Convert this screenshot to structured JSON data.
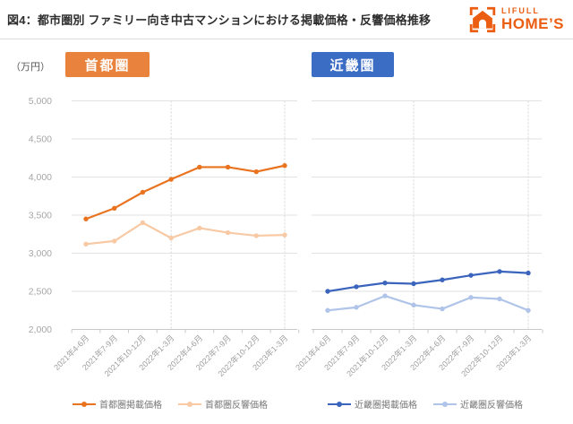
{
  "header": {
    "title": "図4：都市圏別 ファミリー向き中古マンションにおける掲載価格・反響価格推移",
    "logo": {
      "brand_top": "LIFULL",
      "brand_bottom": "HOME’S",
      "color": "#EB5E12"
    }
  },
  "axis": {
    "unit": "（万円）"
  },
  "theme": {
    "grid_color": "#E2E2E2",
    "axis_color": "#C8C8C8",
    "dashed_guide_color": "#D5D5D5",
    "ytick_label_color": "#A6A6A6",
    "xtick_label_color": "#9E9E9E",
    "legend_text_color": "#777777",
    "title_color": "#2D2D2D"
  },
  "chart_data": [
    {
      "type": "line",
      "panel_label": "首都圏",
      "panel_color": "#E8823C",
      "categories": [
        "2021年4-6月",
        "2021年7-9月",
        "2021年10-12月",
        "2022年1-3月",
        "2022年4-6月",
        "2022年7-9月",
        "2022年10-12月",
        "2023年1-3月"
      ],
      "ylabel": "（万円）",
      "ylim": [
        2000,
        5000
      ],
      "ytick_step": 500,
      "grid": true,
      "legend_position": "bottom",
      "series": [
        {
          "name": "首都圏掲載価格",
          "color": "#E9731F",
          "values": [
            3450,
            3590,
            3800,
            3970,
            4130,
            4130,
            4070,
            4150
          ]
        },
        {
          "name": "首都圏反響価格",
          "color": "#F7C9A4",
          "values": [
            3120,
            3160,
            3400,
            3200,
            3330,
            3270,
            3230,
            3240
          ]
        }
      ]
    },
    {
      "type": "line",
      "panel_label": "近畿圏",
      "panel_color": "#3C6DC5",
      "categories": [
        "2021年4-6月",
        "2021年7-9月",
        "2021年10-12月",
        "2022年1-3月",
        "2022年4-6月",
        "2022年7-9月",
        "2022年10-12月",
        "2023年1-3月"
      ],
      "ylabel": "（万円）",
      "ylim": [
        2000,
        5000
      ],
      "ytick_step": 500,
      "grid": true,
      "legend_position": "bottom",
      "series": [
        {
          "name": "近畿圏掲載価格",
          "color": "#3B64BC",
          "values": [
            2500,
            2560,
            2610,
            2600,
            2650,
            2710,
            2760,
            2740
          ]
        },
        {
          "name": "近畿圏反響価格",
          "color": "#AFC4E8",
          "values": [
            2250,
            2290,
            2440,
            2320,
            2270,
            2420,
            2400,
            2250
          ]
        }
      ]
    }
  ]
}
